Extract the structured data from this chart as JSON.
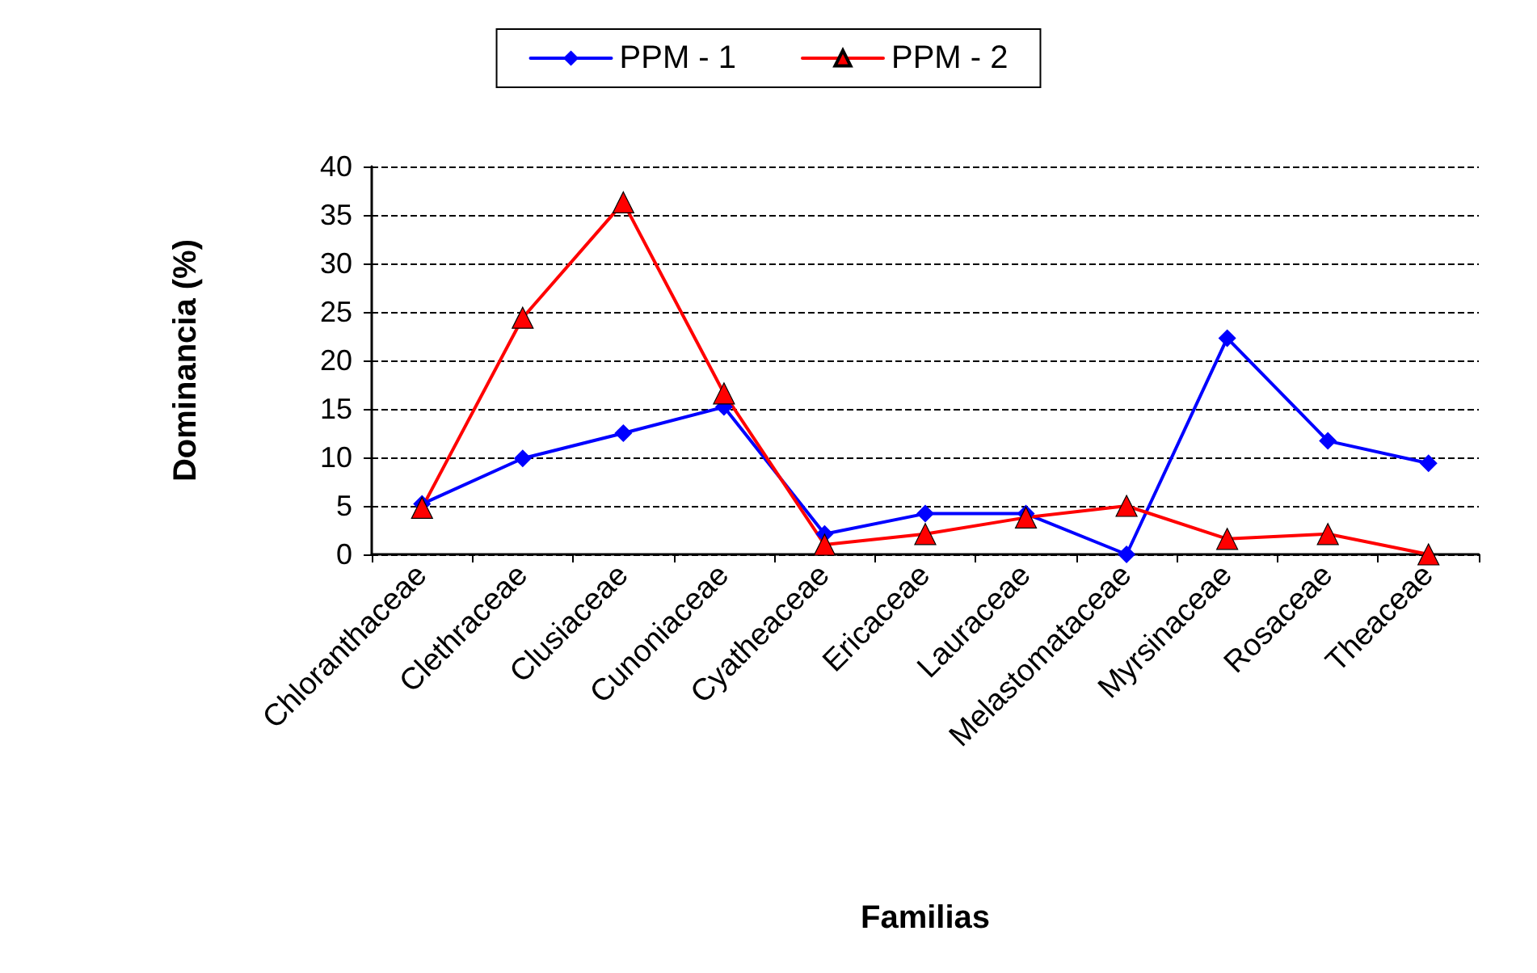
{
  "chart_data": {
    "type": "line",
    "xlabel": "Familias",
    "ylabel": "Dominancia (%)",
    "categories": [
      "Chloranthaceae",
      "Clethraceae",
      "Clusiaceae",
      "Cunoniaceae",
      "Cyatheaceae",
      "Ericaceae",
      "Lauraceae",
      "Melastomataceae",
      "Myrsinaceae",
      "Rosaceae",
      "Theaceae"
    ],
    "series": [
      {
        "name": "PPM - 1",
        "color": "#0000ff",
        "marker": "diamond",
        "values": [
          5.2,
          9.9,
          12.5,
          15.2,
          2.1,
          4.2,
          4.2,
          0,
          22.3,
          11.7,
          9.4
        ]
      },
      {
        "name": "PPM - 2",
        "color": "#ff0000",
        "marker": "triangle",
        "values": [
          4.8,
          24.4,
          36.3,
          16.6,
          1.0,
          2.1,
          3.8,
          5.0,
          1.6,
          2.1,
          0
        ]
      }
    ],
    "ylim": [
      0,
      40
    ],
    "yticks": [
      0,
      5,
      10,
      15,
      20,
      25,
      30,
      35,
      40
    ],
    "grid": "y",
    "legend": "top",
    "line_style": "solid"
  }
}
